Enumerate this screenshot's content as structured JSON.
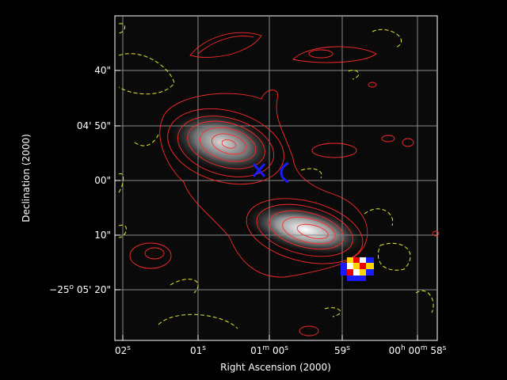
{
  "x_axis": {
    "label": "Right Ascension (2000)",
    "ticks": [
      [
        {
          "text": "02"
        },
        {
          "sup": "s"
        }
      ],
      [
        {
          "text": "01"
        },
        {
          "sup": "s"
        }
      ],
      [
        {
          "text": "01"
        },
        {
          "sup": "m"
        },
        {
          "text": " 00"
        },
        {
          "sup": "s"
        }
      ],
      [
        {
          "text": "59"
        },
        {
          "sup": "s"
        }
      ],
      [
        {
          "text": "00"
        },
        {
          "sup": "h"
        },
        {
          "text": " 00"
        },
        {
          "sup": "m"
        },
        {
          "text": " 58"
        },
        {
          "sup": "s"
        }
      ]
    ]
  },
  "y_axis": {
    "label": "Declination (2000)",
    "ticks": [
      [
        {
          "text": "40\""
        }
      ],
      [
        {
          "text": "04' 50\""
        }
      ],
      [
        {
          "text": "00\""
        }
      ],
      [
        {
          "text": "10\""
        }
      ],
      [
        {
          "text": "−25"
        },
        {
          "sup": "o"
        },
        {
          "text": " 05' 20\""
        }
      ]
    ]
  }
}
